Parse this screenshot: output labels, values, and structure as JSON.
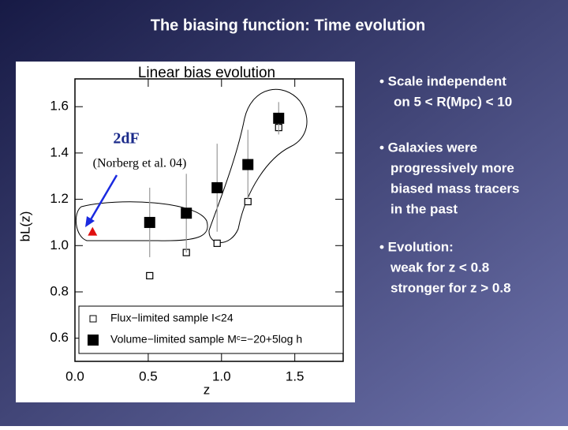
{
  "slide": {
    "title": "The biasing function:  Time evolution",
    "bullets": [
      {
        "lines": [
          "• Scale independent",
          "on 5 < R(Mpc) < 10"
        ]
      },
      {
        "lines": [
          "• Galaxies were",
          "progressively more",
          "biased mass tracers",
          "in the past"
        ]
      },
      {
        "lines": [
          "• Evolution:",
          "weak  for z < 0.8",
          "stronger for z > 0.8"
        ]
      }
    ]
  },
  "chart_data": {
    "type": "scatter",
    "title": "Linear bias evolution",
    "x_label": "z",
    "y_label": "bL(z)",
    "xlim": [
      0,
      1.83
    ],
    "ylim": [
      0.5,
      1.72
    ],
    "xticks": [
      {
        "value": 0,
        "label": "0.0"
      },
      0.5,
      {
        "value": 1,
        "label": "1.0"
      },
      1.5
    ],
    "yticks": [
      0.6,
      0.8,
      {
        "value": 1,
        "label": "1.0"
      },
      1.2,
      1.4,
      1.6
    ],
    "legend": "bottom-left",
    "series": [
      {
        "name": "Flux−limited sample I<24",
        "marker": "open-square",
        "color": "#000000",
        "x": [
          0.51,
          0.76,
          0.97,
          1.18,
          1.39
        ],
        "values": [
          0.87,
          0.97,
          1.01,
          1.19,
          1.51
        ]
      },
      {
        "name": "Volume−limited sample Mᶜ=−20+5log h",
        "marker": "filled-square",
        "color": "#000000",
        "x": [
          0.51,
          0.76,
          0.97,
          1.18,
          1.39
        ],
        "values": [
          1.1,
          1.14,
          1.25,
          1.35,
          1.55
        ],
        "errors": [
          0.15,
          0.17,
          0.19,
          0.15,
          0.07
        ]
      },
      {
        "name": "2dF",
        "marker": "triangle",
        "color": "#e01010",
        "x": [
          0.12
        ],
        "values": [
          1.06
        ]
      }
    ],
    "annotations": [
      "2dF",
      "(Norberg et al. 04)"
    ]
  }
}
